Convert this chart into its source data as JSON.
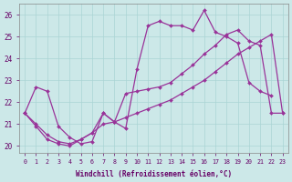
{
  "xlabel": "Windchill (Refroidissement éolien,°C)",
  "bg_color": "#cce8e8",
  "grid_color": "#aad4d4",
  "line_color": "#993399",
  "ylim": [
    19.7,
    26.5
  ],
  "xlim": [
    -0.5,
    23.5
  ],
  "yticks": [
    20,
    21,
    22,
    23,
    24,
    25,
    26
  ],
  "xticks": [
    0,
    1,
    2,
    3,
    4,
    5,
    6,
    7,
    8,
    9,
    10,
    11,
    12,
    13,
    14,
    15,
    16,
    17,
    18,
    19,
    20,
    21,
    22,
    23
  ],
  "curve1_x": [
    0,
    1,
    2,
    3,
    4,
    5,
    6,
    7,
    8,
    9,
    10,
    11,
    12,
    13,
    14,
    15,
    16,
    17,
    18,
    19,
    20,
    21,
    22
  ],
  "curve1_y": [
    21.5,
    22.7,
    22.5,
    20.9,
    20.4,
    20.1,
    20.2,
    21.5,
    21.1,
    20.8,
    23.5,
    25.5,
    25.7,
    25.5,
    25.5,
    25.3,
    26.2,
    25.2,
    25.0,
    24.7,
    22.9,
    22.5,
    22.3
  ],
  "curve2_x": [
    0,
    1,
    2,
    3,
    4,
    5,
    6,
    7,
    8,
    9,
    10,
    11,
    12,
    13,
    14,
    15,
    16,
    17,
    18,
    19,
    20,
    21,
    22,
    23
  ],
  "curve2_y": [
    21.5,
    21.0,
    20.5,
    20.2,
    20.1,
    20.3,
    20.6,
    21.0,
    21.1,
    21.3,
    21.5,
    21.7,
    21.9,
    22.1,
    22.4,
    22.7,
    23.0,
    23.4,
    23.8,
    24.2,
    24.5,
    24.8,
    25.1,
    21.5
  ],
  "curve3_x": [
    0,
    1,
    2,
    3,
    4,
    5,
    6,
    7,
    8,
    9,
    10,
    11,
    12,
    13,
    14,
    15,
    16,
    17,
    18,
    19,
    20,
    21,
    22,
    23
  ],
  "curve3_y": [
    21.5,
    20.9,
    20.3,
    20.1,
    20.0,
    20.3,
    20.6,
    21.5,
    21.1,
    22.4,
    22.5,
    22.6,
    22.7,
    22.9,
    23.3,
    23.7,
    24.2,
    24.6,
    25.1,
    25.3,
    24.8,
    24.6,
    21.5,
    21.5
  ]
}
